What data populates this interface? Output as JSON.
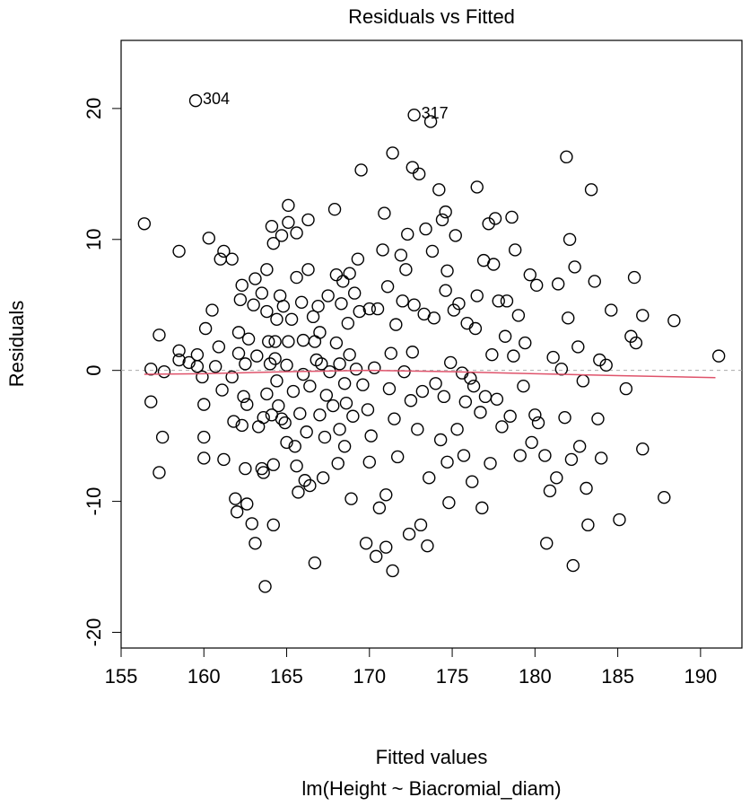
{
  "chart_data": {
    "type": "scatter",
    "title": "Residuals vs Fitted",
    "xlabel": "Fitted values",
    "subtitle": "lm(Height ~ Biacromial_diam)",
    "ylabel": "Residuals",
    "xlim": [
      155.0,
      192.5
    ],
    "ylim": [
      -21.2,
      25.2
    ],
    "xticks": [
      155,
      160,
      165,
      170,
      175,
      180,
      185,
      190
    ],
    "yticks": [
      -20,
      -10,
      0,
      10,
      20
    ],
    "color": "#000000",
    "x": [
      156.4,
      156.8,
      156.8,
      157.3,
      157.3,
      157.5,
      157.6,
      158.5,
      158.5,
      158.5,
      159.1,
      159.5,
      159.6,
      159.6,
      159.9,
      160.0,
      160.1,
      160.0,
      160.0,
      160.3,
      160.5,
      160.7,
      160.9,
      161.0,
      161.2,
      161.1,
      161.2,
      161.7,
      161.7,
      161.8,
      161.9,
      162.0,
      162.1,
      162.1,
      162.2,
      162.3,
      162.3,
      162.4,
      162.5,
      162.5,
      162.6,
      162.6,
      162.7,
      162.9,
      163.0,
      163.1,
      163.1,
      163.2,
      163.3,
      163.5,
      163.5,
      163.6,
      163.6,
      163.7,
      163.8,
      163.8,
      163.8,
      163.9,
      164.0,
      164.1,
      164.1,
      164.2,
      164.2,
      164.2,
      164.3,
      164.3,
      164.4,
      164.4,
      164.5,
      164.6,
      164.7,
      164.7,
      164.8,
      164.9,
      165.0,
      165.0,
      165.1,
      165.1,
      165.1,
      165.3,
      165.4,
      165.5,
      165.6,
      165.6,
      165.6,
      165.7,
      165.8,
      165.9,
      166.0,
      166.0,
      166.1,
      166.2,
      166.3,
      166.3,
      166.4,
      166.4,
      166.6,
      166.7,
      166.7,
      166.8,
      166.9,
      167.0,
      167.0,
      167.1,
      167.2,
      167.3,
      167.4,
      167.5,
      167.6,
      167.8,
      167.9,
      168.0,
      168.0,
      168.1,
      168.2,
      168.2,
      168.3,
      168.4,
      168.5,
      168.5,
      168.6,
      168.7,
      168.8,
      168.8,
      168.9,
      169.0,
      169.1,
      169.2,
      169.3,
      169.4,
      169.5,
      169.6,
      169.8,
      169.9,
      170.0,
      170.0,
      170.1,
      170.3,
      170.4,
      170.5,
      170.6,
      170.8,
      170.9,
      171.0,
      171.0,
      171.1,
      171.2,
      171.3,
      171.4,
      171.4,
      171.5,
      171.6,
      171.7,
      171.9,
      172.0,
      172.1,
      172.2,
      172.3,
      172.4,
      172.5,
      172.6,
      172.6,
      172.7,
      172.9,
      173.0,
      173.1,
      173.2,
      173.3,
      173.4,
      173.5,
      173.6,
      173.7,
      173.8,
      173.9,
      174.0,
      172.7,
      174.2,
      174.3,
      174.4,
      174.5,
      174.6,
      174.6,
      174.7,
      174.7,
      174.8,
      174.9,
      175.1,
      175.2,
      175.3,
      175.4,
      175.6,
      175.7,
      175.8,
      175.9,
      176.1,
      176.2,
      176.3,
      176.4,
      176.5,
      176.5,
      176.7,
      176.8,
      176.9,
      177.0,
      177.2,
      177.3,
      177.4,
      177.5,
      177.6,
      177.7,
      177.8,
      178.0,
      178.2,
      178.3,
      178.5,
      178.6,
      178.7,
      178.8,
      179.0,
      179.1,
      179.3,
      179.4,
      179.7,
      179.8,
      180.0,
      180.1,
      180.2,
      180.6,
      180.7,
      180.9,
      181.1,
      181.3,
      181.4,
      181.6,
      181.8,
      181.9,
      182.0,
      182.1,
      182.2,
      182.3,
      182.4,
      182.6,
      182.7,
      182.9,
      183.1,
      183.2,
      183.4,
      183.6,
      183.8,
      183.9,
      184.0,
      184.3,
      184.6,
      185.1,
      185.5,
      185.8,
      186.0,
      186.1,
      186.5,
      186.5,
      187.8,
      188.4,
      191.1
    ],
    "y": [
      11.2,
      0.1,
      -2.4,
      2.7,
      -7.8,
      -5.1,
      -0.1,
      9.1,
      1.5,
      0.8,
      0.6,
      20.6,
      0.3,
      1.2,
      -0.5,
      -2.6,
      3.2,
      -5.1,
      -6.7,
      10.1,
      4.6,
      0.3,
      1.8,
      8.5,
      9.1,
      -1.5,
      -6.8,
      8.5,
      -0.5,
      -3.9,
      -9.8,
      -10.8,
      1.3,
      2.9,
      5.4,
      6.5,
      -4.2,
      -2.0,
      0.5,
      -7.5,
      -10.2,
      -2.6,
      2.4,
      -11.7,
      5.0,
      7.0,
      -13.2,
      1.1,
      -4.3,
      5.9,
      -7.5,
      -3.6,
      -7.8,
      -16.5,
      4.5,
      -1.8,
      7.7,
      2.2,
      0.5,
      -3.4,
      11.0,
      9.7,
      -11.8,
      -7.2,
      0.9,
      2.2,
      3.9,
      -0.8,
      -2.7,
      5.7,
      -3.7,
      10.3,
      4.9,
      -4.0,
      -5.5,
      0.4,
      2.2,
      12.6,
      11.3,
      3.9,
      -1.6,
      -5.8,
      10.5,
      7.1,
      -7.3,
      -9.3,
      -3.3,
      5.2,
      2.3,
      -0.3,
      -8.4,
      -4.7,
      11.5,
      7.7,
      -8.8,
      -1.2,
      4.1,
      2.2,
      -14.7,
      0.8,
      4.9,
      -3.4,
      2.9,
      0.5,
      -8.2,
      -5.1,
      -1.9,
      5.7,
      -0.1,
      -2.7,
      12.3,
      7.3,
      2.1,
      -7.1,
      0.5,
      -4.5,
      5.1,
      6.8,
      -1.0,
      -5.8,
      -2.5,
      3.6,
      1.2,
      7.4,
      -9.8,
      -3.5,
      5.9,
      0.1,
      8.5,
      4.5,
      15.3,
      -1.1,
      -13.2,
      -3.0,
      -7.0,
      4.7,
      -5.0,
      0.2,
      -14.2,
      4.7,
      -10.5,
      9.2,
      12.0,
      -13.5,
      -9.5,
      6.4,
      -1.4,
      1.3,
      -15.3,
      16.6,
      -3.7,
      3.5,
      -6.6,
      8.8,
      5.3,
      -0.1,
      7.7,
      10.4,
      -12.5,
      -2.3,
      15.5,
      1.4,
      5.0,
      -4.5,
      15.0,
      -11.8,
      -1.6,
      4.3,
      10.8,
      -13.4,
      -8.2,
      19.0,
      9.1,
      4.0,
      -1.0,
      19.5,
      13.8,
      -5.3,
      11.5,
      -2.0,
      6.1,
      12.1,
      -7.0,
      7.6,
      -10.1,
      0.6,
      4.6,
      10.3,
      -4.5,
      5.1,
      -0.2,
      -6.5,
      -2.4,
      3.6,
      -0.6,
      -8.5,
      -1.2,
      3.2,
      14.0,
      5.7,
      -3.2,
      -10.5,
      8.4,
      -2.0,
      11.2,
      -7.1,
      1.2,
      8.1,
      11.6,
      -2.2,
      5.3,
      -4.3,
      2.6,
      5.3,
      -3.5,
      11.7,
      1.1,
      9.2,
      4.2,
      -6.5,
      -1.2,
      2.1,
      7.3,
      -5.5,
      -3.4,
      6.5,
      -4.0,
      -6.5,
      -13.2,
      -9.2,
      1.0,
      -8.2,
      6.6,
      0.1,
      -3.6,
      16.3,
      4.0,
      10.0,
      -6.8,
      -14.9,
      7.9,
      1.8,
      -5.8,
      -0.8,
      -9.0,
      -11.8,
      13.8,
      6.8,
      -3.7,
      0.8,
      -6.7,
      0.4,
      4.6,
      -11.4,
      -1.4,
      2.6,
      7.1,
      2.1,
      4.2,
      -6.0,
      -9.7,
      3.8,
      1.1
    ],
    "annotations": [
      {
        "text": "304",
        "x": 159.5,
        "y": 20.6
      },
      {
        "text": "317",
        "x": 172.7,
        "y": 19.5
      }
    ],
    "smooth": {
      "color": "#df536b",
      "x": [
        156.4,
        160,
        165,
        170,
        175,
        180,
        185,
        190.9
      ],
      "y": [
        -0.3,
        -0.25,
        -0.1,
        0.0,
        -0.1,
        -0.25,
        -0.4,
        -0.55
      ]
    },
    "reference_line": {
      "y": 0,
      "color": "#aaaaaa"
    }
  }
}
